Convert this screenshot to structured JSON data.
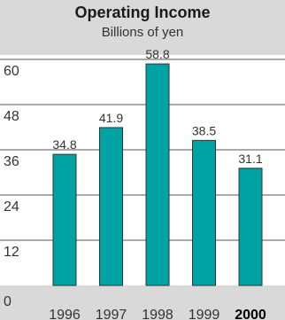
{
  "chart_data": {
    "type": "bar",
    "title": "Operating Income",
    "subtitle": "Billions of yen",
    "categories": [
      "1996",
      "1997",
      "1998",
      "1999",
      "2000"
    ],
    "highlight_category": "2000",
    "values": [
      34.8,
      41.9,
      58.8,
      38.5,
      31.1
    ],
    "value_labels": [
      "34.8",
      "41.9",
      "58.8",
      "38.5",
      "31.1"
    ],
    "y_ticks": [
      "0",
      "12",
      "24",
      "36",
      "48",
      "60"
    ],
    "ylim": [
      0,
      60
    ],
    "grid": true,
    "bar_color": "#00a3a3"
  }
}
